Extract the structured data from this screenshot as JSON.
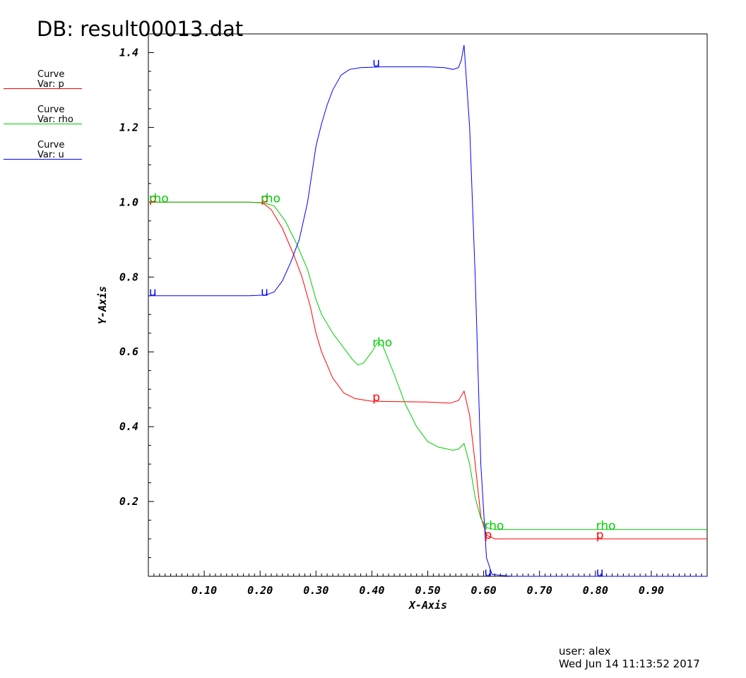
{
  "title": "DB: result00013.dat",
  "legend": [
    {
      "line1": "Curve",
      "line2": "Var: p",
      "color": "#ff0000"
    },
    {
      "line1": "Curve",
      "line2": "Var: rho",
      "color": "#00cc00"
    },
    {
      "line1": "Curve",
      "line2": "Var: u",
      "color": "#0000ff"
    }
  ],
  "footer": {
    "user": "user: alex",
    "date": "Wed Jun 14 11:13:52 2017"
  },
  "chart_data": {
    "type": "line",
    "xlabel": "X-Axis",
    "ylabel": "Y-Axis",
    "xlim": [
      0.0,
      1.0
    ],
    "ylim": [
      0.0,
      1.45
    ],
    "x_ticks": [
      0.1,
      0.2,
      0.3,
      0.4,
      0.5,
      0.6,
      0.7,
      0.8,
      0.9
    ],
    "x_tick_labels": [
      "0.10",
      "0.20",
      "0.30",
      "0.40",
      "0.50",
      "0.60",
      "0.70",
      "0.80",
      "0.90"
    ],
    "y_ticks": [
      0.2,
      0.4,
      0.6,
      0.8,
      1.0,
      1.2,
      1.4
    ],
    "y_tick_labels": [
      "0.2",
      "0.4",
      "0.6",
      "0.8",
      "1.0",
      "1.2",
      "1.4"
    ],
    "grid": false,
    "legend_position": "top-left",
    "series": [
      {
        "name": "p",
        "color": "#ff0000",
        "points": [
          [
            0.0,
            1.0
          ],
          [
            0.18,
            1.0
          ],
          [
            0.205,
            0.998
          ],
          [
            0.22,
            0.98
          ],
          [
            0.24,
            0.93
          ],
          [
            0.26,
            0.86
          ],
          [
            0.275,
            0.8
          ],
          [
            0.29,
            0.72
          ],
          [
            0.3,
            0.65
          ],
          [
            0.31,
            0.6
          ],
          [
            0.33,
            0.53
          ],
          [
            0.35,
            0.49
          ],
          [
            0.37,
            0.475
          ],
          [
            0.4,
            0.468
          ],
          [
            0.45,
            0.467
          ],
          [
            0.5,
            0.466
          ],
          [
            0.54,
            0.463
          ],
          [
            0.555,
            0.47
          ],
          [
            0.565,
            0.495
          ],
          [
            0.575,
            0.43
          ],
          [
            0.585,
            0.3
          ],
          [
            0.595,
            0.16
          ],
          [
            0.605,
            0.11
          ],
          [
            0.62,
            0.1
          ],
          [
            0.7,
            0.1
          ],
          [
            1.0,
            0.1
          ]
        ],
        "labels": [
          {
            "x": 0.01,
            "y": 1.0,
            "text": "p"
          },
          {
            "x": 0.21,
            "y": 1.0,
            "text": "p"
          },
          {
            "x": 0.41,
            "y": 0.468,
            "text": "p"
          },
          {
            "x": 0.61,
            "y": 0.1,
            "text": "p"
          },
          {
            "x": 0.81,
            "y": 0.1,
            "text": "p"
          }
        ]
      },
      {
        "name": "rho",
        "color": "#00cc00",
        "points": [
          [
            0.0,
            1.0
          ],
          [
            0.18,
            1.0
          ],
          [
            0.205,
            0.999
          ],
          [
            0.225,
            0.99
          ],
          [
            0.245,
            0.95
          ],
          [
            0.265,
            0.89
          ],
          [
            0.285,
            0.82
          ],
          [
            0.3,
            0.74
          ],
          [
            0.31,
            0.7
          ],
          [
            0.33,
            0.65
          ],
          [
            0.35,
            0.61
          ],
          [
            0.365,
            0.58
          ],
          [
            0.375,
            0.565
          ],
          [
            0.385,
            0.57
          ],
          [
            0.4,
            0.6
          ],
          [
            0.41,
            0.625
          ],
          [
            0.42,
            0.615
          ],
          [
            0.44,
            0.54
          ],
          [
            0.46,
            0.46
          ],
          [
            0.48,
            0.4
          ],
          [
            0.5,
            0.36
          ],
          [
            0.52,
            0.345
          ],
          [
            0.545,
            0.337
          ],
          [
            0.555,
            0.34
          ],
          [
            0.565,
            0.355
          ],
          [
            0.575,
            0.3
          ],
          [
            0.585,
            0.21
          ],
          [
            0.595,
            0.155
          ],
          [
            0.605,
            0.13
          ],
          [
            0.62,
            0.125
          ],
          [
            0.7,
            0.125
          ],
          [
            1.0,
            0.125
          ]
        ],
        "labels": [
          {
            "x": 0.01,
            "y": 1.0,
            "text": "rho"
          },
          {
            "x": 0.21,
            "y": 1.0,
            "text": "rho"
          },
          {
            "x": 0.41,
            "y": 0.615,
            "text": "rho"
          },
          {
            "x": 0.61,
            "y": 0.125,
            "text": "rho"
          },
          {
            "x": 0.81,
            "y": 0.125,
            "text": "rho"
          }
        ]
      },
      {
        "name": "u",
        "color": "#0000ff",
        "points": [
          [
            0.0,
            0.75
          ],
          [
            0.18,
            0.75
          ],
          [
            0.21,
            0.752
          ],
          [
            0.225,
            0.76
          ],
          [
            0.24,
            0.79
          ],
          [
            0.255,
            0.84
          ],
          [
            0.27,
            0.9
          ],
          [
            0.285,
            1.0
          ],
          [
            0.3,
            1.15
          ],
          [
            0.31,
            1.21
          ],
          [
            0.32,
            1.26
          ],
          [
            0.33,
            1.3
          ],
          [
            0.345,
            1.34
          ],
          [
            0.36,
            1.355
          ],
          [
            0.38,
            1.36
          ],
          [
            0.42,
            1.362
          ],
          [
            0.5,
            1.362
          ],
          [
            0.53,
            1.36
          ],
          [
            0.545,
            1.355
          ],
          [
            0.555,
            1.36
          ],
          [
            0.56,
            1.38
          ],
          [
            0.565,
            1.42
          ],
          [
            0.575,
            1.2
          ],
          [
            0.585,
            0.8
          ],
          [
            0.595,
            0.3
          ],
          [
            0.605,
            0.05
          ],
          [
            0.615,
            0.005
          ],
          [
            0.65,
            0.0
          ],
          [
            1.0,
            0.0
          ]
        ],
        "labels": [
          {
            "x": 0.01,
            "y": 0.75,
            "text": "u"
          },
          {
            "x": 0.21,
            "y": 0.75,
            "text": "u"
          },
          {
            "x": 0.41,
            "y": 1.362,
            "text": "u"
          },
          {
            "x": 0.61,
            "y": 0.0,
            "text": "u"
          },
          {
            "x": 0.81,
            "y": 0.0,
            "text": "u"
          }
        ]
      }
    ]
  }
}
